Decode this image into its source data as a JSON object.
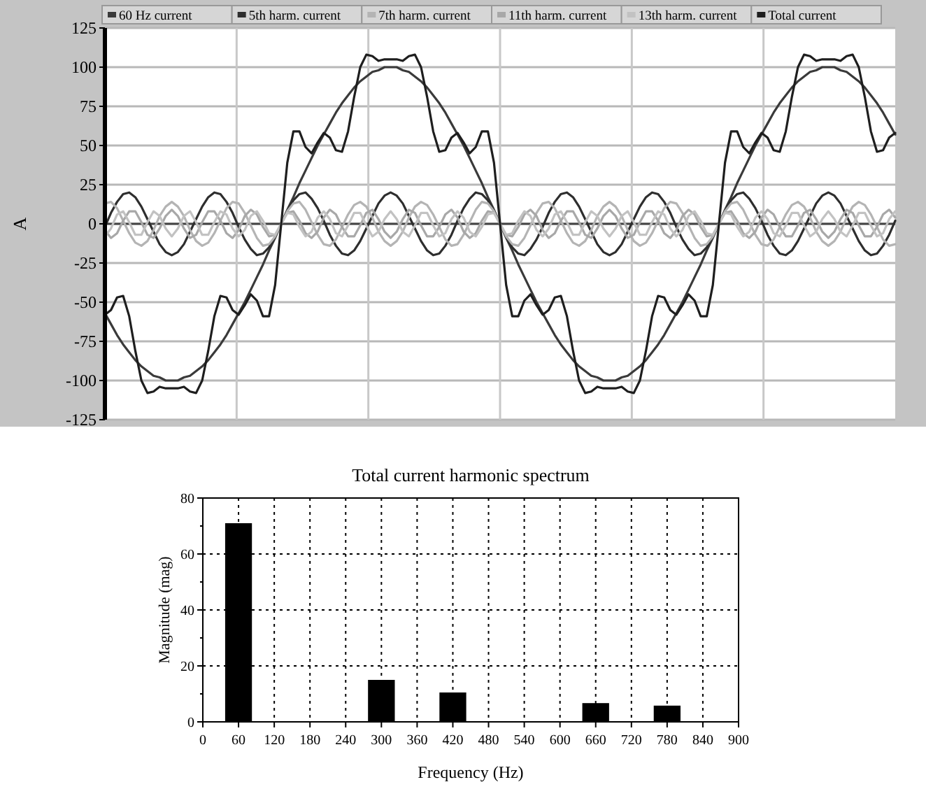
{
  "chart_data": [
    {
      "type": "line",
      "ylabel": "A",
      "ylim": [
        -125,
        125
      ],
      "yticks": [
        -125,
        -100,
        -75,
        -50,
        -25,
        0,
        25,
        50,
        75,
        100,
        125
      ],
      "grid": true,
      "legend": "top",
      "tick_labels": "y",
      "line_style": "solid",
      "categories": [
        null,
        null,
        null,
        null,
        null,
        null,
        null,
        null,
        null,
        null,
        null,
        null,
        null,
        null,
        null,
        null,
        null,
        null,
        null,
        null,
        null,
        null,
        null,
        null,
        null,
        null,
        null,
        null,
        null,
        null,
        null,
        null,
        null,
        null,
        null,
        null,
        null,
        null,
        null,
        null,
        null,
        null,
        null,
        null,
        null,
        null,
        null,
        null,
        null,
        null,
        null,
        null,
        null,
        null,
        null,
        null,
        null,
        null,
        null,
        null,
        null,
        null,
        null,
        null,
        null,
        null,
        null,
        null,
        null,
        null,
        null,
        null,
        null,
        null,
        null,
        null,
        null,
        null,
        null,
        null,
        null,
        null,
        null,
        null,
        null,
        null,
        null,
        null,
        null,
        null,
        null,
        null,
        null,
        null,
        null,
        null,
        null,
        null,
        null,
        null,
        null,
        null,
        null,
        null,
        null,
        null,
        null,
        null,
        null,
        null,
        null,
        null,
        null,
        null,
        null,
        null,
        null,
        null,
        null,
        null,
        null,
        null,
        null,
        null,
        null,
        null,
        null,
        null,
        null,
        null,
        null
      ],
      "series": [
        {
          "name": "60 Hz current",
          "color": "#3a3a3a",
          "values": [
            -57,
            -64,
            -71,
            -77,
            -82,
            -87,
            -91,
            -94,
            -97,
            -98,
            -100,
            -100,
            -100,
            -98,
            -97,
            -94,
            -91,
            -87,
            -82,
            -77,
            -71,
            -64,
            -57,
            -50,
            -42,
            -34,
            -26,
            -17,
            -9,
            0,
            9,
            17,
            26,
            34,
            42,
            50,
            57,
            64,
            71,
            77,
            82,
            87,
            91,
            94,
            97,
            98,
            100,
            100,
            100,
            98,
            97,
            94,
            91,
            87,
            82,
            77,
            71,
            64,
            57,
            50,
            42,
            34,
            26,
            17,
            9,
            0,
            -9,
            -17,
            -26,
            -34,
            -42,
            -50,
            -57,
            -64,
            -71,
            -77,
            -82,
            -87,
            -91,
            -94,
            -97,
            -98,
            -100,
            -100,
            -100,
            -98,
            -97,
            -94,
            -91,
            -87,
            -82,
            -77,
            -71,
            -64,
            -57,
            -50,
            -42,
            -34,
            -26,
            -17,
            -9,
            0,
            9,
            17,
            26,
            34,
            42,
            50,
            57,
            64,
            71,
            77,
            82,
            87,
            91,
            94,
            97,
            98,
            100,
            100,
            100,
            98,
            97,
            94,
            91,
            87,
            82,
            77,
            71,
            64,
            57
          ]
        },
        {
          "name": "5th harm. current",
          "color": "#2e2e2e",
          "values": [
            -2,
            7,
            14,
            19,
            20,
            17,
            11,
            3,
            -5,
            -13,
            -18,
            -20,
            -18,
            -13,
            -5,
            3,
            11,
            17,
            20,
            19,
            14,
            7,
            -2,
            -10,
            -16,
            -20,
            -19,
            -15,
            -8,
            0,
            8,
            15,
            19,
            20,
            16,
            10,
            2,
            -7,
            -14,
            -19,
            -20,
            -17,
            -11,
            -3,
            5,
            13,
            18,
            20,
            18,
            13,
            5,
            -3,
            -11,
            -17,
            -20,
            -19,
            -14,
            -7,
            2,
            10,
            16,
            20,
            19,
            15,
            8,
            0,
            -8,
            -15,
            -19,
            -20,
            -16,
            -10,
            -2,
            7,
            14,
            19,
            20,
            17,
            11,
            3,
            -5,
            -13,
            -18,
            -20,
            -18,
            -13,
            -5,
            3,
            11,
            17,
            20,
            19,
            14,
            7,
            -2,
            -10,
            -16,
            -20,
            -19,
            -15,
            -8,
            0,
            8,
            15,
            19,
            20,
            16,
            10,
            2,
            -7,
            -14,
            -19,
            -20,
            -17,
            -11,
            -3,
            5,
            13,
            18,
            20,
            18,
            13,
            5,
            -3,
            -11,
            -17,
            -20,
            -19,
            -14,
            -7,
            2
          ]
        },
        {
          "name": "7th harm. current",
          "color": "#b4b4b4",
          "values": [
            13,
            14,
            10,
            2,
            -6,
            -12,
            -14,
            -11,
            -4,
            5,
            11,
            14,
            11,
            5,
            -4,
            -11,
            -14,
            -12,
            -6,
            2,
            10,
            14,
            13,
            7,
            -1,
            -9,
            -14,
            -13,
            -8,
            0,
            8,
            13,
            14,
            9,
            1,
            -7,
            -13,
            -14,
            -10,
            -2,
            6,
            12,
            14,
            11,
            4,
            -5,
            -11,
            -14,
            -11,
            -5,
            4,
            11,
            14,
            12,
            6,
            -2,
            -10,
            -14,
            -13,
            -7,
            1,
            9,
            14,
            13,
            8,
            0,
            -8,
            -13,
            -14,
            -9,
            -1,
            7,
            13,
            14,
            10,
            2,
            -6,
            -12,
            -14,
            -11,
            -4,
            5,
            11,
            14,
            11,
            5,
            -4,
            -11,
            -14,
            -12,
            -6,
            2,
            10,
            14,
            13,
            7,
            -1,
            -9,
            -14,
            -13,
            -8,
            0,
            8,
            13,
            14,
            9,
            1,
            -7,
            -13,
            -14,
            -10,
            -2,
            6,
            12,
            14,
            11,
            4,
            -5,
            -11,
            -14,
            -11,
            -5,
            4,
            11,
            14,
            12,
            6,
            -2,
            -10,
            -14,
            -13
          ]
        },
        {
          "name": "11th harm. current",
          "color": "#a8a8a8",
          "values": [
            -4,
            -9,
            -6,
            2,
            8,
            8,
            1,
            -7,
            -9,
            -3,
            5,
            9,
            5,
            -3,
            -9,
            -7,
            1,
            8,
            8,
            2,
            -6,
            -9,
            -4,
            5,
            9,
            6,
            -2,
            -8,
            -7,
            0,
            7,
            8,
            2,
            -6,
            -9,
            -5,
            4,
            9,
            6,
            -2,
            -8,
            -8,
            -1,
            7,
            9,
            3,
            -5,
            -9,
            -5,
            3,
            9,
            7,
            -1,
            -8,
            -8,
            -2,
            6,
            9,
            4,
            -5,
            -9,
            -6,
            2,
            8,
            7,
            0,
            -7,
            -8,
            -2,
            6,
            9,
            5,
            -4,
            -9,
            -6,
            2,
            8,
            8,
            1,
            -7,
            -9,
            -3,
            5,
            9,
            5,
            -3,
            -9,
            -7,
            1,
            8,
            8,
            2,
            -6,
            -9,
            -4,
            5,
            9,
            6,
            -2,
            -8,
            -7,
            0,
            7,
            8,
            2,
            -6,
            -9,
            -5,
            4,
            9,
            6,
            -2,
            -8,
            -8,
            -1,
            7,
            9,
            3,
            -5,
            -9,
            -5,
            3,
            9,
            7,
            -1,
            -8,
            -8,
            -2,
            6,
            9,
            4
          ]
        },
        {
          "name": "13th harm. current",
          "color": "#c2c2c2",
          "values": [
            -8,
            -3,
            6,
            8,
            1,
            -7,
            -7,
            1,
            8,
            5,
            -3,
            -8,
            -3,
            5,
            8,
            1,
            -7,
            -7,
            1,
            8,
            6,
            -3,
            -8,
            -4,
            5,
            8,
            2,
            -6,
            -7,
            0,
            7,
            6,
            -2,
            -8,
            -5,
            4,
            8,
            3,
            -6,
            -8,
            -1,
            7,
            7,
            -1,
            -8,
            -5,
            3,
            8,
            3,
            -5,
            -8,
            -1,
            7,
            7,
            -1,
            -8,
            -6,
            3,
            8,
            4,
            -5,
            -8,
            -2,
            6,
            7,
            0,
            -7,
            -6,
            2,
            8,
            5,
            -4,
            -8,
            -3,
            6,
            8,
            1,
            -7,
            -7,
            1,
            8,
            5,
            -3,
            -8,
            -3,
            5,
            8,
            1,
            -7,
            -7,
            1,
            8,
            6,
            -3,
            -8,
            -4,
            5,
            8,
            2,
            -6,
            -7,
            0,
            7,
            6,
            -2,
            -8,
            -5,
            4,
            8,
            3,
            -6,
            -8,
            -1,
            7,
            7,
            -1,
            -8,
            -5,
            3,
            8,
            3,
            -5,
            -8,
            -1,
            7,
            7,
            -1,
            -8,
            -6,
            3,
            8
          ]
        },
        {
          "name": "Total current",
          "color": "#1e1e1e",
          "values": [
            -58,
            -55,
            -47,
            -46,
            -59,
            -81,
            -100,
            -108,
            -107,
            -104,
            -105,
            -105,
            -105,
            -104,
            -107,
            -108,
            -100,
            -81,
            -59,
            -46,
            -47,
            -55,
            -58,
            -52,
            -45,
            -49,
            -59,
            -59,
            -39,
            0,
            39,
            59,
            59,
            49,
            45,
            52,
            58,
            55,
            47,
            46,
            59,
            81,
            100,
            108,
            107,
            104,
            105,
            105,
            105,
            104,
            107,
            108,
            100,
            81,
            59,
            46,
            47,
            55,
            58,
            52,
            45,
            49,
            59,
            59,
            39,
            0,
            -39,
            -59,
            -59,
            -49,
            -45,
            -52,
            -58,
            -55,
            -47,
            -46,
            -59,
            -81,
            -100,
            -108,
            -107,
            -104,
            -105,
            -105,
            -105,
            -104,
            -107,
            -108,
            -100,
            -81,
            -59,
            -46,
            -47,
            -55,
            -58,
            -52,
            -45,
            -49,
            -59,
            -59,
            -39,
            0,
            39,
            59,
            59,
            49,
            45,
            52,
            58,
            55,
            47,
            46,
            59,
            81,
            100,
            108,
            107,
            104,
            105,
            105,
            105,
            104,
            107,
            108,
            100,
            81,
            59,
            46,
            47,
            55,
            58
          ]
        }
      ]
    },
    {
      "type": "bar",
      "title": "Total current harmonic spectrum",
      "xlabel": "Frequency (Hz)",
      "ylabel": "Magnitude (mag)",
      "x": [
        60,
        300,
        420,
        660,
        780
      ],
      "values": [
        71,
        15,
        10.5,
        6.7,
        5.8
      ],
      "color": "#000000",
      "xlim": [
        0,
        900
      ],
      "xticks": [
        0,
        60,
        120,
        180,
        240,
        300,
        360,
        420,
        480,
        540,
        600,
        660,
        720,
        780,
        840,
        900
      ],
      "ylim": [
        0,
        80
      ],
      "yticks": [
        0,
        20,
        40,
        60,
        80
      ],
      "grid": true
    }
  ]
}
